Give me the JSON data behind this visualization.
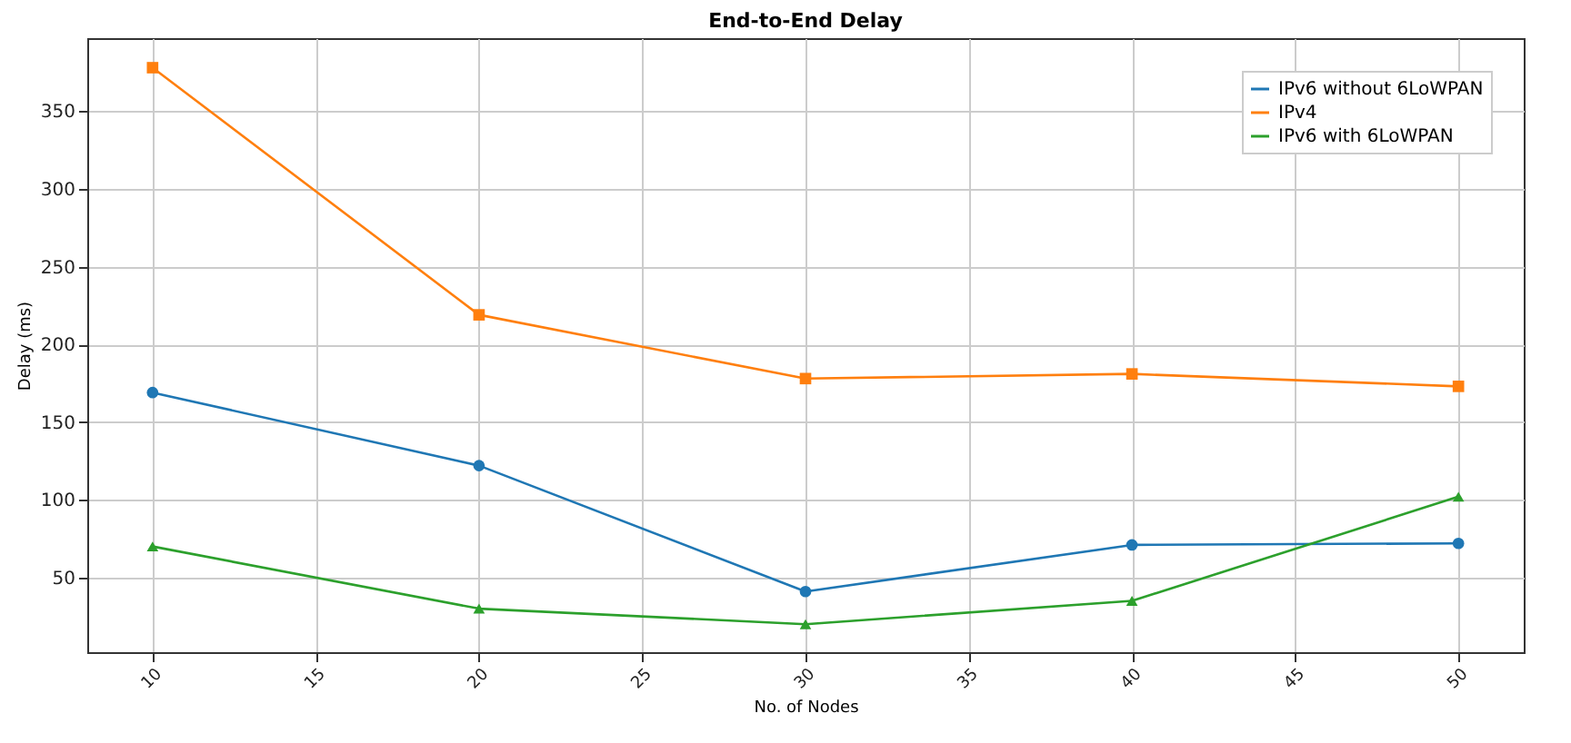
{
  "chart_data": {
    "type": "line",
    "title": "End-to-End Delay",
    "xlabel": "No. of Nodes",
    "ylabel": "Delay (ms)",
    "x": [
      10,
      20,
      30,
      40,
      50
    ],
    "series": [
      {
        "name": "IPv6 without 6LoWPAN",
        "color": "#1f77b4",
        "marker": "circle",
        "values": [
          169,
          122,
          41,
          71,
          72
        ]
      },
      {
        "name": "IPv4",
        "color": "#ff7f0e",
        "marker": "square",
        "values": [
          378,
          219,
          178,
          181,
          173
        ]
      },
      {
        "name": "IPv6 with 6LoWPAN",
        "color": "#2ca02c",
        "marker": "triangle",
        "values": [
          70,
          30,
          20,
          35,
          102
        ]
      }
    ],
    "xlim": [
      8,
      52
    ],
    "xticks": [
      10,
      15,
      20,
      25,
      30,
      35,
      40,
      45,
      50
    ],
    "ylim": [
      2,
      397
    ],
    "yticks": [
      50,
      100,
      150,
      200,
      250,
      300,
      350
    ],
    "grid": true,
    "legend": "top right",
    "line_style": "solid"
  }
}
